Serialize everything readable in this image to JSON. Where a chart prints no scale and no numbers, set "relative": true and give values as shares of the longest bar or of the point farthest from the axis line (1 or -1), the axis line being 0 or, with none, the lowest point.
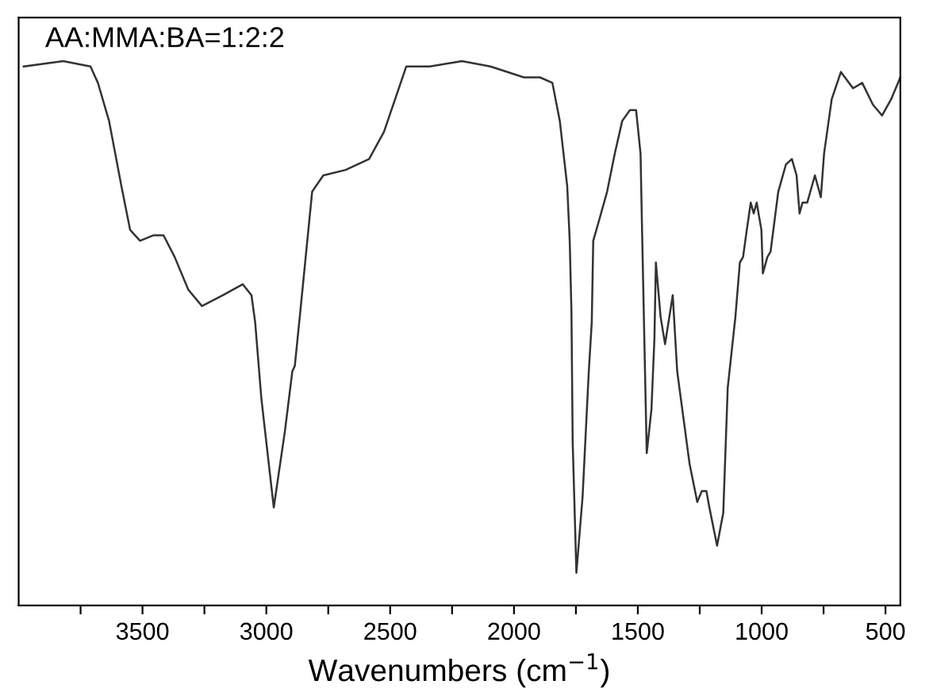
{
  "chart_data": {
    "type": "line",
    "relative": true,
    "xlabel": "Wavenumbers (cm$^{−1}$)",
    "annotations": [
      "AA:MMA:BA=1:2:2"
    ],
    "xlim": [
      4000,
      440
    ],
    "xticks": [
      {
        "value": 3750,
        "label": null
      },
      3500,
      {
        "value": 3250,
        "label": null
      },
      3000,
      {
        "value": 2750,
        "label": null
      },
      2500,
      {
        "value": 2250,
        "label": null
      },
      2000,
      {
        "value": 1750,
        "label": null
      },
      1500,
      {
        "value": 1250,
        "label": null
      },
      1000,
      {
        "value": 750,
        "label": null
      },
      500
    ],
    "tick_labels": "x",
    "grid": false,
    "marker": "none",
    "line_style": "solid",
    "series": [
      {
        "color": "#333333",
        "x": [
          3980,
          3820,
          3710,
          3680,
          3635,
          3585,
          3550,
          3510,
          3455,
          3415,
          3370,
          3315,
          3260,
          3175,
          3095,
          3060,
          3045,
          3020,
          2970,
          2925,
          2895,
          2885,
          2865,
          2815,
          2770,
          2680,
          2585,
          2525,
          2435,
          2340,
          2210,
          2095,
          1960,
          1895,
          1845,
          1815,
          1785,
          1775,
          1768,
          1763,
          1748,
          1723,
          1698,
          1686,
          1680,
          1661,
          1624,
          1593,
          1563,
          1532,
          1507,
          1489,
          1482,
          1464,
          1445,
          1433,
          1427,
          1408,
          1390,
          1359,
          1341,
          1291,
          1260,
          1242,
          1223,
          1211,
          1180,
          1155,
          1137,
          1106,
          1088,
          1075,
          1063,
          1044,
          1032,
          1020,
          1001,
          995,
          977,
          964,
          933,
          902,
          878,
          859,
          847,
          835,
          816,
          785,
          761,
          748,
          717,
          680,
          631,
          594,
          551,
          514,
          477,
          440
        ],
        "values": [
          0.99,
          1.0,
          0.99,
          0.96,
          0.89,
          0.77,
          0.69,
          0.67,
          0.68,
          0.68,
          0.64,
          0.58,
          0.55,
          0.57,
          0.59,
          0.57,
          0.52,
          0.38,
          0.18,
          0.32,
          0.43,
          0.44,
          0.53,
          0.76,
          0.79,
          0.8,
          0.82,
          0.87,
          0.99,
          0.99,
          1.0,
          0.99,
          0.97,
          0.97,
          0.96,
          0.89,
          0.77,
          0.67,
          0.54,
          0.3,
          0.06,
          0.2,
          0.43,
          0.52,
          0.67,
          0.7,
          0.76,
          0.83,
          0.89,
          0.91,
          0.91,
          0.83,
          0.67,
          0.28,
          0.36,
          0.49,
          0.63,
          0.53,
          0.48,
          0.57,
          0.43,
          0.26,
          0.19,
          0.21,
          0.21,
          0.18,
          0.11,
          0.17,
          0.4,
          0.53,
          0.63,
          0.64,
          0.68,
          0.74,
          0.72,
          0.74,
          0.69,
          0.61,
          0.64,
          0.65,
          0.76,
          0.81,
          0.82,
          0.79,
          0.72,
          0.74,
          0.74,
          0.79,
          0.75,
          0.83,
          0.93,
          0.98,
          0.95,
          0.96,
          0.92,
          0.9,
          0.93,
          0.97
        ]
      }
    ]
  }
}
